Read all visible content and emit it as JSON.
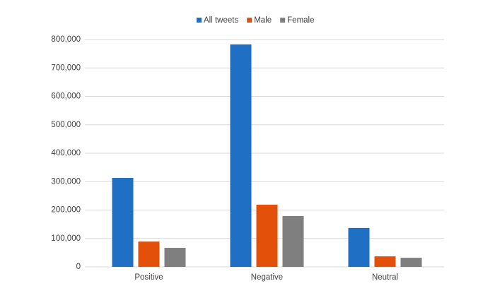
{
  "chart_data": {
    "type": "bar",
    "categories": [
      "Positive",
      "Negative",
      "Neutral"
    ],
    "series": [
      {
        "name": "All tweets",
        "color": "#1f6fc5",
        "values": [
          313000,
          783000,
          137000
        ]
      },
      {
        "name": "Male",
        "color": "#e2500a",
        "values": [
          89000,
          219000,
          37000
        ]
      },
      {
        "name": "Female",
        "color": "#7f7f7f",
        "values": [
          67000,
          179000,
          32000
        ]
      }
    ],
    "ylim": [
      0,
      800000
    ],
    "yticks": [
      0,
      {
        "value": 100000,
        "label": "100,000"
      },
      {
        "value": 200000,
        "label": "200,000"
      },
      {
        "value": 300000,
        "label": "300,000"
      },
      {
        "value": 400000,
        "label": "400,000"
      },
      {
        "value": 500000,
        "label": "500,000"
      },
      {
        "value": 600000,
        "label": "600,000"
      },
      {
        "value": 700000,
        "label": "700,000"
      },
      {
        "value": 800000,
        "label": "800,000"
      }
    ],
    "grid": true,
    "legend": "top"
  }
}
